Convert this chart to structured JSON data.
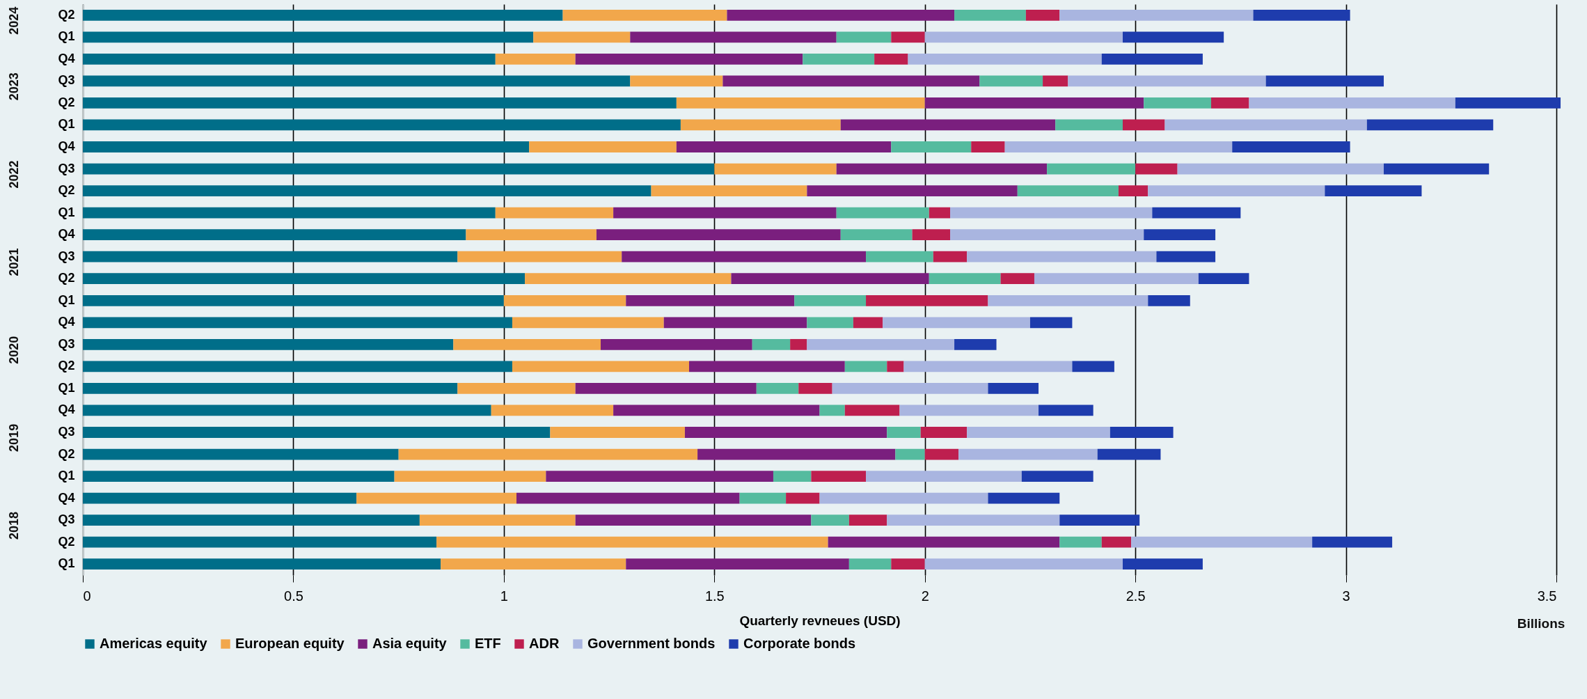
{
  "chart_data": {
    "type": "bar",
    "orientation": "horizontal",
    "stacked": true,
    "xlabel": "Quarterly revneues (USD)",
    "annotations": [
      "2024",
      "2023",
      "2022",
      "2021",
      "2020",
      "2019",
      "2018",
      "Billions"
    ],
    "categories": [
      "Q2",
      "Q1",
      "Q4",
      "Q3",
      "Q2",
      "Q1",
      "Q4",
      "Q3",
      "Q2",
      "Q1",
      "Q4",
      "Q3",
      "Q2",
      "Q1",
      "Q4",
      "Q3",
      "Q2",
      "Q1",
      "Q4",
      "Q3",
      "Q2",
      "Q1",
      "Q4",
      "Q3",
      "Q2",
      "Q1"
    ],
    "series": [
      {
        "name": "Americas equity",
        "color": "#006e89",
        "values": [
          1.14,
          1.07,
          0.98,
          1.3,
          1.41,
          1.42,
          1.06,
          1.5,
          1.35,
          0.98,
          0.91,
          0.89,
          1.05,
          1.0,
          1.02,
          0.88,
          1.02,
          0.89,
          0.97,
          1.11,
          0.75,
          0.74,
          0.65,
          0.8,
          0.84,
          0.85
        ]
      },
      {
        "name": "European equity",
        "color": "#f2a74b",
        "values": [
          0.39,
          0.23,
          0.19,
          0.22,
          0.59,
          0.38,
          0.35,
          0.29,
          0.37,
          0.28,
          0.31,
          0.39,
          0.49,
          0.29,
          0.36,
          0.35,
          0.42,
          0.28,
          0.29,
          0.32,
          0.71,
          0.36,
          0.38,
          0.37,
          0.93,
          0.44
        ]
      },
      {
        "name": "Asia equity",
        "color": "#7a1f7e",
        "values": [
          0.54,
          0.49,
          0.54,
          0.61,
          0.52,
          0.51,
          0.51,
          0.5,
          0.5,
          0.53,
          0.58,
          0.58,
          0.47,
          0.4,
          0.34,
          0.36,
          0.37,
          0.43,
          0.49,
          0.48,
          0.47,
          0.54,
          0.53,
          0.56,
          0.55,
          0.53
        ]
      },
      {
        "name": "ETF",
        "color": "#55bb9f",
        "values": [
          0.17,
          0.13,
          0.17,
          0.15,
          0.16,
          0.16,
          0.19,
          0.21,
          0.24,
          0.22,
          0.17,
          0.16,
          0.17,
          0.17,
          0.11,
          0.09,
          0.1,
          0.1,
          0.06,
          0.08,
          0.07,
          0.09,
          0.11,
          0.09,
          0.1,
          0.1
        ]
      },
      {
        "name": "ADR",
        "color": "#be1f4f",
        "values": [
          0.08,
          0.08,
          0.08,
          0.06,
          0.09,
          0.1,
          0.08,
          0.1,
          0.07,
          0.05,
          0.09,
          0.08,
          0.08,
          0.29,
          0.07,
          0.04,
          0.04,
          0.08,
          0.13,
          0.11,
          0.08,
          0.13,
          0.08,
          0.09,
          0.07,
          0.08
        ]
      },
      {
        "name": "Government bonds",
        "color": "#a9b5e0",
        "values": [
          0.46,
          0.47,
          0.46,
          0.47,
          0.49,
          0.48,
          0.54,
          0.49,
          0.42,
          0.48,
          0.46,
          0.45,
          0.39,
          0.38,
          0.35,
          0.35,
          0.4,
          0.37,
          0.33,
          0.34,
          0.33,
          0.37,
          0.4,
          0.41,
          0.43,
          0.47
        ]
      },
      {
        "name": "Corporate bonds",
        "color": "#1e3cad",
        "values": [
          0.23,
          0.24,
          0.24,
          0.28,
          0.25,
          0.3,
          0.28,
          0.25,
          0.23,
          0.21,
          0.17,
          0.14,
          0.12,
          0.1,
          0.1,
          0.1,
          0.1,
          0.12,
          0.13,
          0.15,
          0.15,
          0.17,
          0.17,
          0.19,
          0.19,
          0.19
        ]
      }
    ],
    "xlim": [
      0,
      3.5
    ],
    "xticks": [
      0,
      0.5,
      1,
      1.5,
      2,
      2.5,
      3,
      3.5
    ],
    "grid": "x",
    "legend": "bottom"
  }
}
